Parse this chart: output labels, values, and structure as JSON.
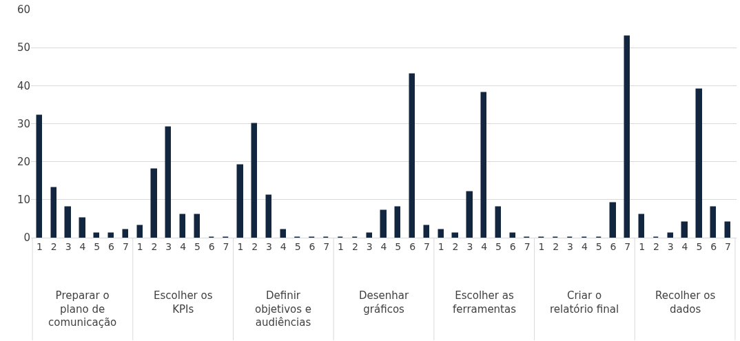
{
  "chart_data": {
    "type": "bar",
    "categories": [
      "1",
      "2",
      "3",
      "4",
      "5",
      "6",
      "7",
      "1",
      "2",
      "3",
      "4",
      "5",
      "6",
      "7",
      "1",
      "2",
      "3",
      "4",
      "5",
      "6",
      "7",
      "1",
      "2",
      "3",
      "4",
      "5",
      "6",
      "7",
      "1",
      "2",
      "3",
      "4",
      "5",
      "6",
      "7",
      "1",
      "2",
      "3",
      "4",
      "5",
      "6",
      "7",
      "1",
      "2",
      "3",
      "4",
      "5",
      "6",
      "7"
    ],
    "values": [
      32,
      13,
      8,
      5,
      1,
      1,
      2,
      3,
      18,
      29,
      6,
      6,
      0,
      0,
      19,
      30,
      11,
      2,
      0,
      0,
      0,
      0,
      0,
      1,
      7,
      8,
      43,
      3,
      2,
      1,
      12,
      38,
      8,
      1,
      0,
      0,
      0,
      0,
      0,
      0,
      9,
      53,
      6,
      0,
      1,
      4,
      39,
      8,
      4
    ],
    "color": "#132640",
    "annotations": [
      "Preparar o plano de comunicação",
      "Escolher os KPIs",
      "Definir objetivos e audiências",
      "Desenhar gráficos",
      "Escolher as ferramentas",
      "Criar o relatório final",
      "Recolher os dados"
    ],
    "ylim": [
      0,
      60
    ],
    "yticks": [
      0,
      10,
      20,
      30,
      40,
      50,
      60
    ],
    "grid": "y"
  }
}
